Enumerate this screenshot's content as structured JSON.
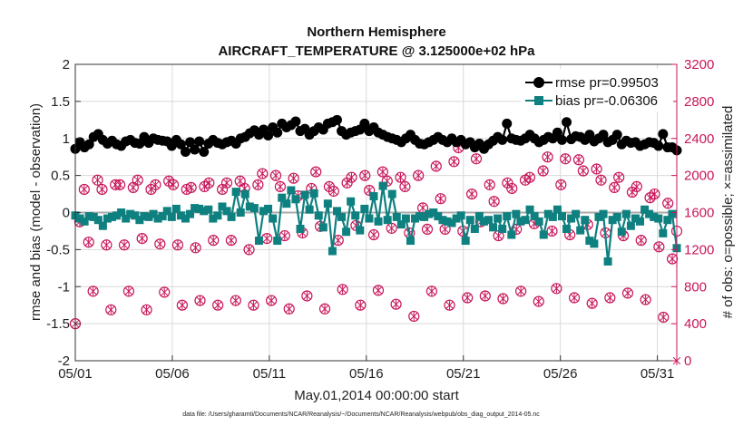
{
  "chart_data": {
    "type": "line",
    "title": "Northern Hemisphere",
    "subtitle": "AIRCRAFT_TEMPERATURE @ 3.125000e+02 hPa",
    "xlabel": "May.01,2014 00:00:00 start",
    "ylabel": "rmse and bias (model - observation)",
    "ylabel_right": "# of obs: o=possible; ×=assimilated",
    "xlim": [
      1,
      32
    ],
    "ylim": [
      -2,
      2
    ],
    "ylim_right": [
      0,
      3200
    ],
    "x_ticks": [
      1,
      6,
      11,
      16,
      21,
      26,
      31
    ],
    "x_tick_labels": [
      "05/01",
      "05/06",
      "05/11",
      "05/16",
      "05/21",
      "05/26",
      "05/31"
    ],
    "y_ticks": [
      -2,
      -1.5,
      -1,
      -0.5,
      0,
      0.5,
      1,
      1.5,
      2
    ],
    "y_tick_labels": [
      "-2",
      "-1.5",
      "-1",
      "-0.5",
      "0",
      "0.5",
      "1",
      "1.5",
      "2"
    ],
    "y_right_ticks": [
      0,
      400,
      800,
      1200,
      1600,
      2000,
      2400,
      2800,
      3200
    ],
    "y_right_tick_labels": [
      "0",
      "400",
      "800",
      "1200",
      "1600",
      "2000",
      "2400",
      "2800",
      "3200"
    ],
    "grid": true,
    "legend_position": "top-right",
    "colors": {
      "rmse": "#000000",
      "bias": "#0f8080",
      "obs": "#c8165a",
      "zero_line": "#aaaaaa"
    },
    "series": [
      {
        "name": "rmse pr=0.99503",
        "marker": "circle",
        "y": [
          0.86,
          0.95,
          0.88,
          0.92,
          1.02,
          1.06,
          0.98,
          0.93,
          0.97,
          0.92,
          0.9,
          0.96,
          0.98,
          0.94,
          0.93,
          1.02,
          0.94,
          1.0,
          0.98,
          0.97,
          0.96,
          0.9,
          0.98,
          0.92,
          0.82,
          0.95,
          0.85,
          0.96,
          0.82,
          0.93,
          0.98,
          0.94,
          0.92,
          0.95,
          0.97,
          0.93,
          1.0,
          1.02,
          1.07,
          1.11,
          1.05,
          1.12,
          1.04,
          1.15,
          1.08,
          1.2,
          1.15,
          1.18,
          1.23,
          1.1,
          1.13,
          1.05,
          1.1,
          1.15,
          1.12,
          1.2,
          1.22,
          1.25,
          1.1,
          1.05,
          1.08,
          1.1,
          1.12,
          1.2,
          1.1,
          1.15,
          1.08,
          1.05,
          1.02,
          1.0,
          0.98,
          0.95,
          1.0,
          1.05,
          0.98,
          0.93,
          0.92,
          0.95,
          0.98,
          1.02,
          0.98,
          0.95,
          1.0,
          0.95,
          0.98,
          0.92,
          0.95,
          0.88,
          0.93,
          0.86,
          0.92,
          0.97,
          1.02,
          0.98,
          1.2,
          1.0,
          0.98,
          0.97,
          1.0,
          1.05,
          1.0,
          0.95,
          0.98,
          1.02,
          1.0,
          1.08,
          0.98,
          1.22,
          0.99,
          1.03,
          1.02,
          0.98,
          1.05,
          0.96,
          1.0,
          1.05,
          0.95,
          0.98,
          1.05,
          0.92,
          0.97,
          0.94,
          0.95,
          0.9,
          0.92,
          0.95,
          0.94,
          0.9,
          1.06,
          0.88,
          0.88,
          0.84
        ]
      },
      {
        "name": "bias pr=-0.06306",
        "marker": "square",
        "y": [
          -0.04,
          -0.08,
          -0.12,
          -0.05,
          -0.06,
          -0.1,
          -0.18,
          -0.08,
          -0.06,
          -0.04,
          0.0,
          -0.08,
          -0.02,
          -0.04,
          -0.1,
          -0.05,
          -0.06,
          -0.02,
          -0.08,
          -0.05,
          0.02,
          -0.06,
          0.05,
          -0.04,
          -0.08,
          -0.02,
          0.06,
          0.05,
          0.02,
          0.04,
          -0.08,
          -0.04,
          0.08,
          0.02,
          -0.06,
          0.28,
          0.0,
          0.25,
          0.08,
          0.06,
          -0.38,
          0.02,
          0.05,
          -0.08,
          -0.38,
          0.2,
          0.12,
          0.3,
          0.18,
          -0.22,
          0.24,
          0.04,
          0.26,
          -0.04,
          -0.2,
          0.12,
          -0.52,
          0.02,
          -0.06,
          -0.26,
          0.15,
          -0.04,
          -0.24,
          0.05,
          -0.08,
          0.22,
          -0.12,
          0.36,
          -0.1,
          0.25,
          -0.06,
          -0.16,
          -0.08,
          -0.38,
          -0.08,
          -0.05,
          -0.06,
          -0.02,
          0.0,
          -0.05,
          -0.1,
          -0.12,
          -0.14,
          -0.08,
          -0.04,
          -0.38,
          -0.1,
          -0.22,
          -0.05,
          -0.12,
          -0.1,
          -0.2,
          -0.08,
          -0.22,
          -0.05,
          -0.3,
          -0.02,
          -0.12,
          -0.1,
          0.04,
          -0.05,
          -0.12,
          -0.3,
          -0.02,
          -0.06,
          0.04,
          -0.05,
          -0.22,
          -0.08,
          -0.02,
          -0.24,
          -0.1,
          -0.38,
          -0.42,
          -0.06,
          -0.02,
          -0.66,
          -0.1,
          -0.06,
          -0.26,
          -0.02,
          -0.18,
          -0.08,
          -0.12,
          0.04,
          -0.02,
          -0.06,
          -0.08,
          -0.28,
          -0.1,
          -0.02,
          -0.48
        ]
      },
      {
        "name": "obs possible",
        "marker": "circle-open",
        "axis": "right",
        "y": [
          400,
          1500,
          1850,
          1280,
          750,
          1950,
          1850,
          1250,
          550,
          1900,
          1900,
          1250,
          750,
          1870,
          1950,
          1320,
          550,
          1850,
          1900,
          1260,
          740,
          1940,
          1900,
          1250,
          600,
          1850,
          1870,
          1220,
          650,
          1880,
          1920,
          1300,
          600,
          1850,
          1920,
          1300,
          650,
          1940,
          1860,
          1200,
          600,
          1900,
          2020,
          1320,
          650,
          2000,
          1880,
          1350,
          560,
          1970,
          1780,
          1380,
          700,
          1860,
          2040,
          1450,
          560,
          1880,
          1830,
          1300,
          770,
          1920,
          1980,
          1460,
          600,
          2000,
          1840,
          1360,
          760,
          2040,
          1940,
          1430,
          610,
          1980,
          1880,
          1380,
          480,
          2000,
          1650,
          1420,
          750,
          2100,
          1750,
          1420,
          600,
          2150,
          2300,
          1400,
          680,
          1800,
          2180,
          1500,
          700,
          1900,
          1720,
          1350,
          670,
          1920,
          1860,
          1420,
          750,
          1950,
          1980,
          1480,
          640,
          2050,
          2200,
          1400,
          780,
          1900,
          2180,
          1360,
          680,
          2170,
          2050,
          1470,
          620,
          2070,
          1950,
          1380,
          680,
          1870,
          1980,
          1350,
          730,
          1820,
          1880,
          1300,
          660,
          1760,
          1800,
          1230,
          470,
          1700,
          1100,
          1400
        ]
      },
      {
        "name": "obs assimilated",
        "marker": "cross",
        "axis": "right",
        "y": [
          400,
          1500,
          1850,
          1280,
          750,
          1950,
          1850,
          1250,
          550,
          1900,
          1900,
          1250,
          750,
          1870,
          1950,
          1320,
          550,
          1850,
          1900,
          1260,
          740,
          1940,
          1900,
          1250,
          600,
          1850,
          1870,
          1220,
          650,
          1880,
          1920,
          1300,
          600,
          1850,
          1920,
          1300,
          650,
          1940,
          1860,
          1200,
          600,
          1900,
          2020,
          1320,
          650,
          2000,
          1880,
          1350,
          560,
          1970,
          1780,
          1380,
          700,
          1860,
          2040,
          1450,
          560,
          1880,
          1830,
          1300,
          770,
          1920,
          1980,
          1460,
          600,
          2000,
          1840,
          1360,
          760,
          2040,
          1940,
          1430,
          610,
          1980,
          1880,
          1380,
          480,
          2000,
          1650,
          1420,
          750,
          2100,
          1750,
          1420,
          600,
          2150,
          2300,
          1400,
          680,
          1800,
          2180,
          1500,
          700,
          1900,
          1720,
          1350,
          670,
          1920,
          1860,
          1420,
          750,
          1950,
          1980,
          1480,
          640,
          2050,
          2200,
          1400,
          780,
          1900,
          2180,
          1360,
          680,
          2170,
          2050,
          1470,
          620,
          2070,
          1950,
          1380,
          680,
          1870,
          1980,
          1350,
          730,
          1820,
          1880,
          1300,
          660,
          1760,
          1800,
          1230,
          470,
          1700,
          1100,
          0
        ]
      }
    ],
    "note": "data file: /Users/gharamti/Documents/NCAR/Reanalysis/~/Documents/NCAR/Reanalysis/webpub/obs_diag_output_2014-05.nc"
  }
}
